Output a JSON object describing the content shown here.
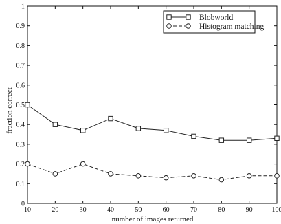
{
  "chart_data": {
    "type": "line",
    "title": "",
    "xlabel": "number of images returned",
    "ylabel": "fraction correct",
    "x": [
      10,
      20,
      30,
      40,
      50,
      60,
      70,
      80,
      90,
      100
    ],
    "xlim": [
      10,
      100
    ],
    "ylim": [
      0,
      1
    ],
    "x_ticks": [
      10,
      20,
      30,
      40,
      50,
      60,
      70,
      80,
      90,
      100
    ],
    "y_ticks": [
      0,
      0.1,
      0.2,
      0.3,
      0.4,
      0.5,
      0.6,
      0.7,
      0.8,
      0.9,
      1
    ],
    "y_tick_labels": [
      "0",
      "0.1",
      "0.2",
      "0.3",
      "0.4",
      "0.5",
      "0.6",
      "0.7",
      "0.8",
      "0.9",
      "1"
    ],
    "grid": false,
    "legend_position": "top-right",
    "series": [
      {
        "name": "Blobworld",
        "line_style": "solid",
        "marker": "square",
        "values": [
          0.5,
          0.4,
          0.37,
          0.43,
          0.38,
          0.37,
          0.34,
          0.32,
          0.32,
          0.33
        ]
      },
      {
        "name": "Histogram matching",
        "line_style": "dashed",
        "marker": "circle",
        "values": [
          0.2,
          0.15,
          0.2,
          0.15,
          0.14,
          0.13,
          0.14,
          0.12,
          0.14,
          0.14
        ]
      }
    ],
    "colors": {
      "line": "#222222",
      "axis": "#111111",
      "background": "#ffffff"
    }
  }
}
